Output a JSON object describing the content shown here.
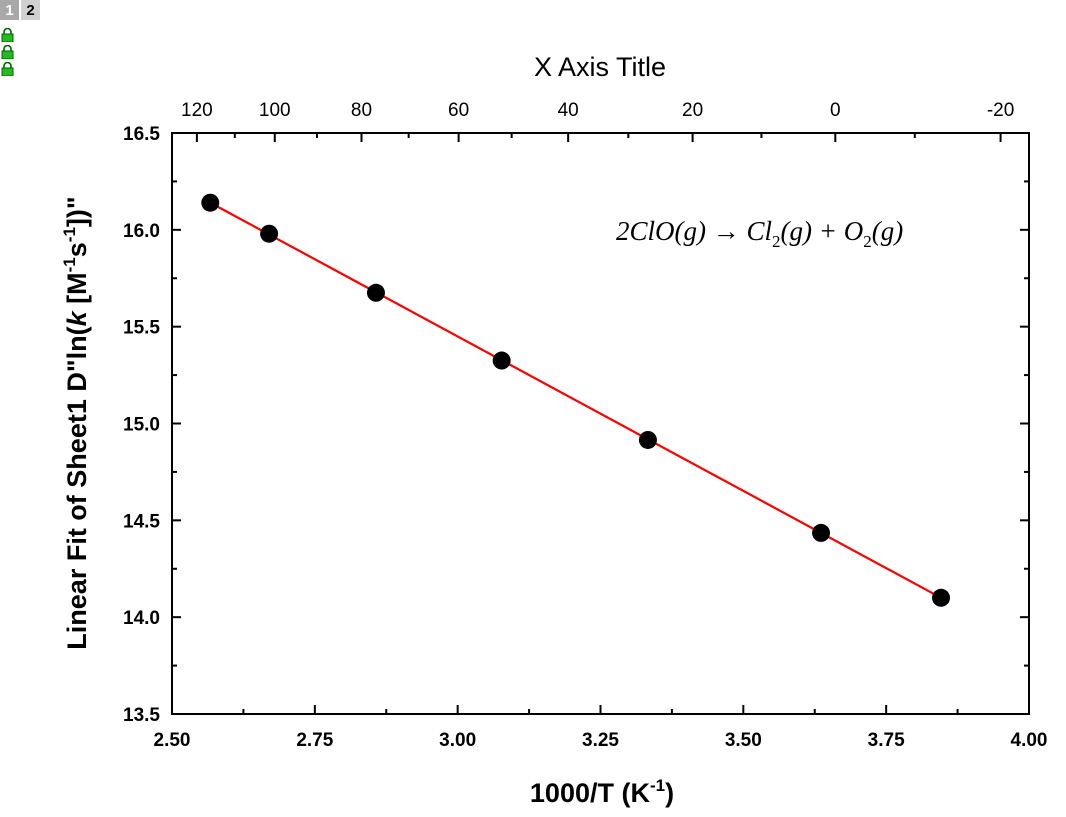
{
  "layer_tabs": [
    {
      "label": "1",
      "active": false
    },
    {
      "label": "2",
      "active": true
    }
  ],
  "lock_icons": [
    "lock-icon",
    "lock-icon",
    "lock-icon"
  ],
  "colors": {
    "fit_line": "#ff0000",
    "points": "#000000",
    "lock": "#22bb22"
  },
  "chart_data": {
    "type": "scatter",
    "title": "",
    "xlabel": "1000/T",
    "xlabel_unit_base": "K",
    "xlabel_unit_sup": "-1",
    "ylabel": "Linear Fit of Sheet1 D\"ln(k [M-1s-1])\"",
    "ylabel_parts": {
      "pre": "Linear Fit of Sheet1 D\"ln(",
      "k": "k",
      "mid1": " [M",
      "sup1": "-1",
      "s": "s",
      "sup2": "-1",
      "post": "])\""
    },
    "top_xlabel": "X Axis Title",
    "xlim": [
      2.5,
      4.0
    ],
    "ylim": [
      13.5,
      16.5
    ],
    "xticks": [
      2.5,
      2.75,
      3.0,
      3.25,
      3.5,
      3.75,
      4.0
    ],
    "xtick_labels": [
      "2.50",
      "2.75",
      "3.00",
      "3.25",
      "3.50",
      "3.75",
      "4.00"
    ],
    "yticks": [
      13.5,
      14.0,
      14.5,
      15.0,
      15.5,
      16.0,
      16.5
    ],
    "ytick_labels": [
      "13.5",
      "14.0",
      "14.5",
      "15.0",
      "15.5",
      "16.0",
      "16.5"
    ],
    "top_xticks_temperature": [
      120,
      100,
      80,
      60,
      40,
      20,
      0,
      -20
    ],
    "top_xtick_labels": [
      "120",
      "100",
      "80",
      "60",
      "40",
      "20",
      "0",
      "-20"
    ],
    "series": [
      {
        "name": "Sheet1 D",
        "x": [
          2.567,
          2.67,
          2.857,
          3.077,
          3.333,
          3.636,
          3.846
        ],
        "y": [
          16.14,
          15.98,
          15.675,
          15.325,
          14.915,
          14.435,
          14.1
        ]
      }
    ],
    "fit": {
      "name": "Linear Fit",
      "x": [
        2.567,
        3.846
      ],
      "y": [
        16.14,
        14.1
      ]
    },
    "annotation": {
      "c1": "2ClO(",
      "g1": "g",
      "c2": ") → Cl",
      "sub1": "2",
      "c3": "(",
      "g2": "g",
      "c4": ") + O",
      "sub2": "2",
      "c5": "(",
      "g3": "g",
      "c6": ")"
    }
  }
}
